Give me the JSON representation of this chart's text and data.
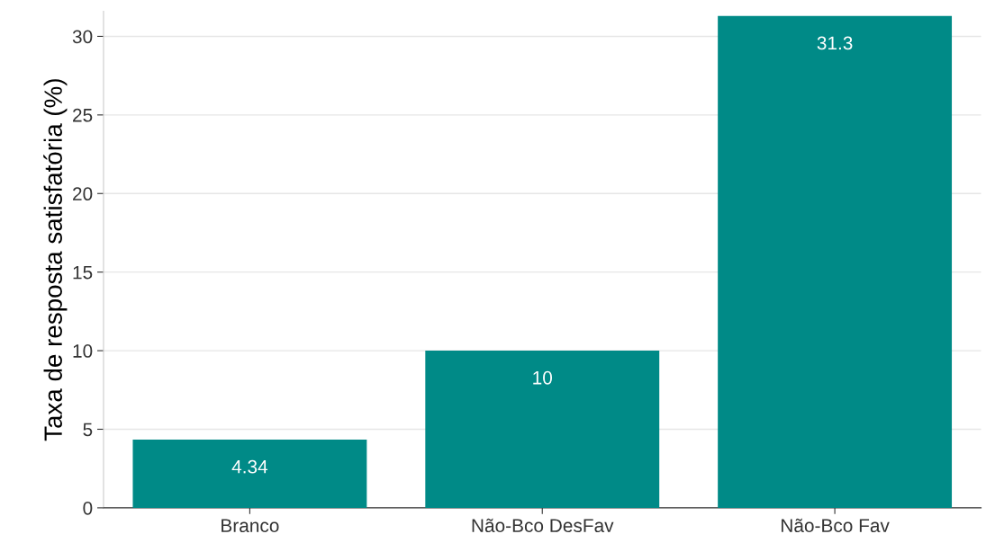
{
  "chart_data": {
    "type": "bar",
    "ylabel": "Taxa de resposta satisfatória (%)",
    "categories": [
      "Branco",
      "Não-Bco DesFav",
      "Não-Bco Fav"
    ],
    "values": [
      4.34,
      10,
      31.3
    ],
    "color": "#008a87",
    "ylim": [
      0,
      31.6
    ],
    "yticks": [
      0,
      5,
      10,
      15,
      20,
      25,
      30
    ],
    "grid": "y",
    "data_labels": true
  }
}
